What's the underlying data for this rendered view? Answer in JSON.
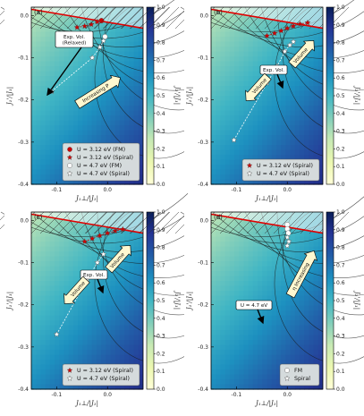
{
  "chart_data": [
    {
      "type": "heatmap",
      "panel_label": "(a)",
      "xlabel": "J₁⊥/|J₁|",
      "ylabel": "J₁'/|J₁|",
      "cbar_label": "J₂'/|J₁|",
      "xlim": [
        -0.15,
        0.07
      ],
      "ylim": [
        -0.4,
        0.02
      ],
      "xticks": [
        "-0.1",
        "0.0"
      ],
      "yticks": [
        "0.0",
        "-0.1",
        "-0.2",
        "-0.3",
        "-0.4"
      ],
      "cbar_range": [
        0.0,
        1.0
      ],
      "cbar_ticks": [
        "0.0",
        "0.1",
        "0.2",
        "0.3",
        "0.4",
        "0.5",
        "0.6",
        "0.7",
        "0.8",
        "0.9",
        "1.0"
      ],
      "boundary_line": [
        [
          -0.15,
          0.015
        ],
        [
          0.07,
          -0.03
        ]
      ],
      "series": [
        {
          "name": "U = 3.12 eV (FM)",
          "marker": "circle",
          "color": "#cc0000",
          "points": [
            [
              -0.012,
              -0.012
            ]
          ]
        },
        {
          "name": "U = 3.12 eV (Spiral)",
          "marker": "star",
          "color": "#cc0000",
          "points": [
            [
              -0.06,
              -0.028
            ],
            [
              -0.045,
              -0.025
            ],
            [
              -0.032,
              -0.021
            ],
            [
              -0.02,
              -0.015
            ]
          ]
        },
        {
          "name": "U = 4.7 eV (FM)",
          "marker": "circle",
          "color": "#ffffff",
          "points": [
            [
              -0.005,
              -0.05
            ]
          ]
        },
        {
          "name": "U = 4.7 eV (Spiral)",
          "marker": "star",
          "color": "#ffffff",
          "points": [
            [
              -0.11,
              -0.18
            ],
            [
              -0.03,
              -0.1
            ],
            [
              -0.015,
              -0.075
            ],
            [
              -0.008,
              -0.06
            ]
          ]
        }
      ],
      "annotations": [
        "Exp. Vol. (Relaxed)",
        "Increasing P"
      ]
    },
    {
      "type": "heatmap",
      "panel_label": "(b)",
      "xlabel": "J₁⊥/|J₁|",
      "ylabel": "J₁'/|J₁|",
      "cbar_label": "J₂'/|J₁|",
      "xlim": [
        -0.15,
        0.07
      ],
      "ylim": [
        -0.4,
        0.02
      ],
      "xticks": [
        "-0.1",
        "0.0"
      ],
      "yticks": [
        "0.0",
        "-0.1",
        "-0.2",
        "-0.3",
        "-0.4"
      ],
      "cbar_range": [
        0.0,
        1.0
      ],
      "cbar_ticks": [
        "0.0",
        "0.1",
        "0.2",
        "0.3",
        "0.4",
        "0.5",
        "0.6",
        "0.7",
        "0.8",
        "0.9",
        "1.0"
      ],
      "boundary_line": [
        [
          -0.15,
          0.015
        ],
        [
          0.07,
          -0.03
        ]
      ],
      "series": [
        {
          "name": "U = 3.12 eV (Spiral)",
          "marker": "star",
          "color": "#cc0000",
          "points": [
            [
              -0.04,
              -0.048
            ],
            [
              -0.025,
              -0.042
            ],
            [
              -0.012,
              -0.036
            ],
            [
              0.0,
              -0.03
            ],
            [
              0.012,
              -0.025
            ],
            [
              0.025,
              -0.02
            ],
            [
              0.04,
              -0.017
            ]
          ]
        },
        {
          "name": "U = 4.7 eV (Spiral)",
          "marker": "star",
          "color": "#ffffff",
          "points": [
            [
              -0.105,
              -0.295
            ],
            [
              -0.04,
              -0.16
            ],
            [
              -0.02,
              -0.12
            ],
            [
              -0.005,
              -0.085
            ],
            [
              0.005,
              -0.07
            ],
            [
              0.012,
              -0.062
            ]
          ]
        }
      ],
      "annotations": [
        "Exp. Vol.",
        "Volume",
        "Volume"
      ]
    },
    {
      "type": "heatmap",
      "panel_label": "(c)",
      "xlabel": "J₁⊥/|J₁|",
      "ylabel": "J₁'/|J₁|",
      "cbar_label": "J₂'/|J₁|",
      "xlim": [
        -0.15,
        0.07
      ],
      "ylim": [
        -0.4,
        0.02
      ],
      "xticks": [
        "-0.1",
        "0.0"
      ],
      "yticks": [
        "0.0",
        "-0.1",
        "-0.2",
        "-0.3",
        "-0.4"
      ],
      "cbar_range": [
        0.0,
        1.0
      ],
      "cbar_ticks": [
        "0.0",
        "0.1",
        "0.2",
        "0.3",
        "0.4",
        "0.5",
        "0.6",
        "0.7",
        "0.8",
        "0.9",
        "1.0"
      ],
      "boundary_line": [
        [
          -0.15,
          0.015
        ],
        [
          0.07,
          -0.03
        ]
      ],
      "series": [
        {
          "name": "U = 3.12 eV (Spiral)",
          "marker": "star",
          "color": "#cc0000",
          "points": [
            [
              -0.045,
              -0.05
            ],
            [
              -0.03,
              -0.043
            ],
            [
              -0.015,
              -0.036
            ],
            [
              0.0,
              -0.03
            ],
            [
              0.015,
              -0.025
            ],
            [
              0.03,
              -0.021
            ]
          ]
        },
        {
          "name": "U = 4.7 eV (Spiral)",
          "marker": "star",
          "color": "#ffffff",
          "points": [
            [
              -0.1,
              -0.27
            ],
            [
              -0.04,
              -0.14
            ],
            [
              -0.02,
              -0.1
            ],
            [
              -0.008,
              -0.08
            ]
          ]
        }
      ],
      "annotations": [
        "Exp. Vol.",
        "Volume",
        "Volume"
      ]
    },
    {
      "type": "heatmap",
      "panel_label": "(d)",
      "xlabel": "J₁⊥/|J₁|",
      "ylabel": "J₁'/|J₁|",
      "cbar_label": "J₂'/|J₁|",
      "xlim": [
        -0.15,
        0.07
      ],
      "ylim": [
        -0.4,
        0.02
      ],
      "xticks": [
        "-0.1",
        "0.0"
      ],
      "yticks": [
        "0.0",
        "-0.1",
        "-0.2",
        "-0.3",
        "-0.4"
      ],
      "cbar_range": [
        0.0,
        1.0
      ],
      "cbar_ticks": [
        "0.0",
        "0.1",
        "0.2",
        "0.3",
        "0.4",
        "0.5",
        "0.6",
        "0.7",
        "0.8",
        "0.9",
        "1.0"
      ],
      "boundary_line": [
        [
          -0.15,
          0.015
        ],
        [
          0.07,
          -0.03
        ]
      ],
      "series": [
        {
          "name": "FM",
          "marker": "circle",
          "color": "#ffffff",
          "points": [
            [
              0.0,
              -0.01
            ],
            [
              0.0,
              -0.02
            ],
            [
              0.002,
              -0.03
            ]
          ]
        },
        {
          "name": "Spiral",
          "marker": "star",
          "color": "#ffffff",
          "points": [
            [
              0.0,
              -0.04
            ],
            [
              0.003,
              -0.05
            ],
            [
              0.0,
              -0.06
            ]
          ]
        }
      ],
      "annotations": [
        "U = 4.7 eV",
        "η Increasing"
      ]
    }
  ]
}
